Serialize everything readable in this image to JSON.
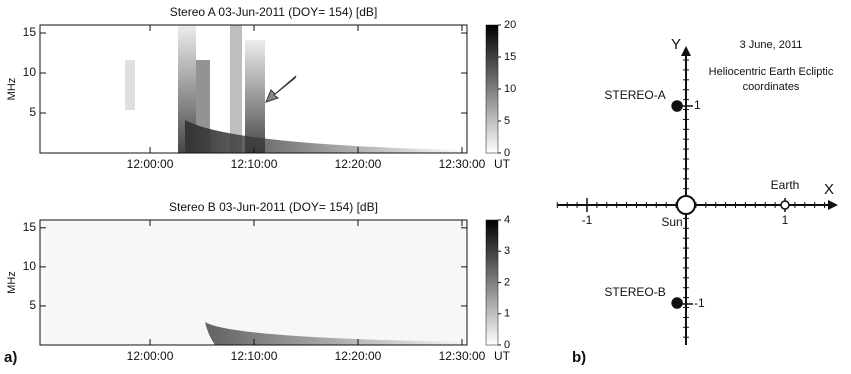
{
  "chart_data": [
    {
      "type": "spectrogram",
      "title": "Stereo A  03-Jun-2011 (DOY= 154)   [dB]",
      "ylabel": "MHz",
      "ylim": [
        0,
        16
      ],
      "yticks": [
        5,
        10,
        15
      ],
      "xlim": [
        "11:49:25",
        "12:30:29"
      ],
      "xticks": [
        "12:00:00",
        "12:10:00",
        "12:20:00",
        "12:30:00"
      ],
      "xunit": "UT",
      "colorbar": {
        "lim": [
          0,
          20
        ],
        "ticks": [
          0,
          5,
          10,
          15,
          20
        ]
      },
      "colormap": "gray",
      "panel_label": "a)"
    },
    {
      "type": "spectrogram",
      "title": "Stereo B  03-Jun-2011 (DOY= 154)   [dB]",
      "ylabel": "MHz",
      "ylim": [
        0,
        16
      ],
      "yticks": [
        5,
        10,
        15
      ],
      "xlim": [
        "11:49:25",
        "12:30:29"
      ],
      "xticks": [
        "12:00:00",
        "12:10:00",
        "12:20:00",
        "12:30:00"
      ],
      "xunit": "UT",
      "colorbar": {
        "lim": [
          0,
          4
        ],
        "ticks": [
          0,
          1,
          2,
          3,
          4
        ]
      },
      "colormap": "gray"
    }
  ],
  "diagram": {
    "panel_label": "b)",
    "date": "3 June, 2011",
    "subtitle_lines": [
      "Heliocentric Earth Ecliptic",
      "coordinates"
    ],
    "x_label": "X",
    "y_label": "Y",
    "xlim": [
      -1.3,
      1.5
    ],
    "ylim": [
      -1.4,
      1.6
    ],
    "xticks": [
      -1,
      1
    ],
    "yticks": [
      -1,
      1
    ],
    "bodies": [
      {
        "name": "STEREO-A",
        "x": -0.09,
        "y": 1
      },
      {
        "name": "STEREO-B",
        "x": -0.09,
        "y": -0.99
      },
      {
        "name": "Sun",
        "x": 0,
        "y": 0
      },
      {
        "name": "Earth",
        "x": 1,
        "y": 0
      }
    ]
  }
}
